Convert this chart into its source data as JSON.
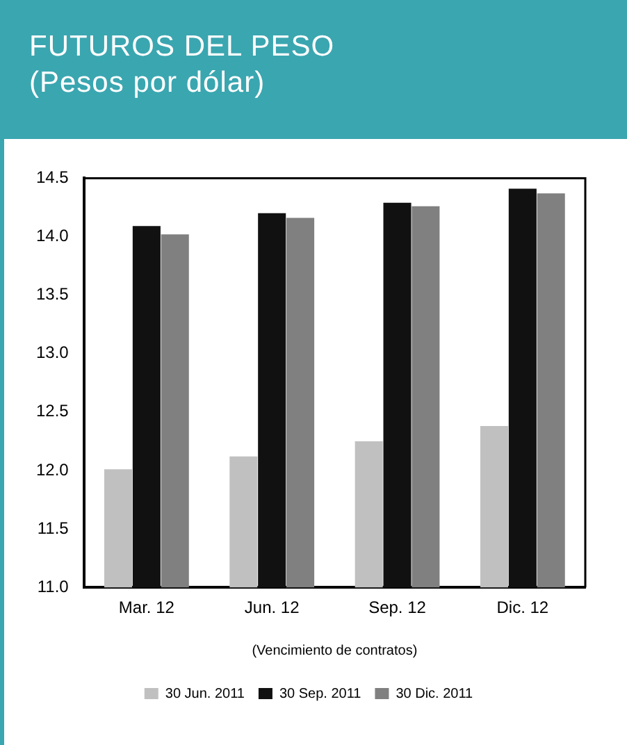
{
  "chart_data": {
    "type": "bar",
    "title": "FUTUROS DEL PESO",
    "subtitle": "(Pesos por dólar)",
    "xlabel": "(Vencimiento de contratos)",
    "categories": [
      "Mar. 12",
      "Jun. 12",
      "Sep. 12",
      "Dic. 12"
    ],
    "series": [
      {
        "name": "30 Jun. 2011",
        "color": "#c0c0c0",
        "values": [
          12.01,
          12.12,
          12.25,
          12.38
        ]
      },
      {
        "name": "30 Sep. 2011",
        "color": "#111111",
        "values": [
          14.09,
          14.2,
          14.29,
          14.41
        ]
      },
      {
        "name": "30 Dic. 2011",
        "color": "#808080",
        "values": [
          14.02,
          14.16,
          14.26,
          14.37
        ]
      }
    ],
    "ylim": [
      11,
      14.5
    ],
    "yticks": [
      {
        "value": 11,
        "label": "11.0"
      },
      11.5,
      {
        "value": 12,
        "label": "12.0"
      },
      12.5,
      {
        "value": 13,
        "label": "13.0"
      },
      13.5,
      {
        "value": 14,
        "label": "14.0"
      },
      14.5
    ],
    "grid": false,
    "legend": "bottom"
  }
}
